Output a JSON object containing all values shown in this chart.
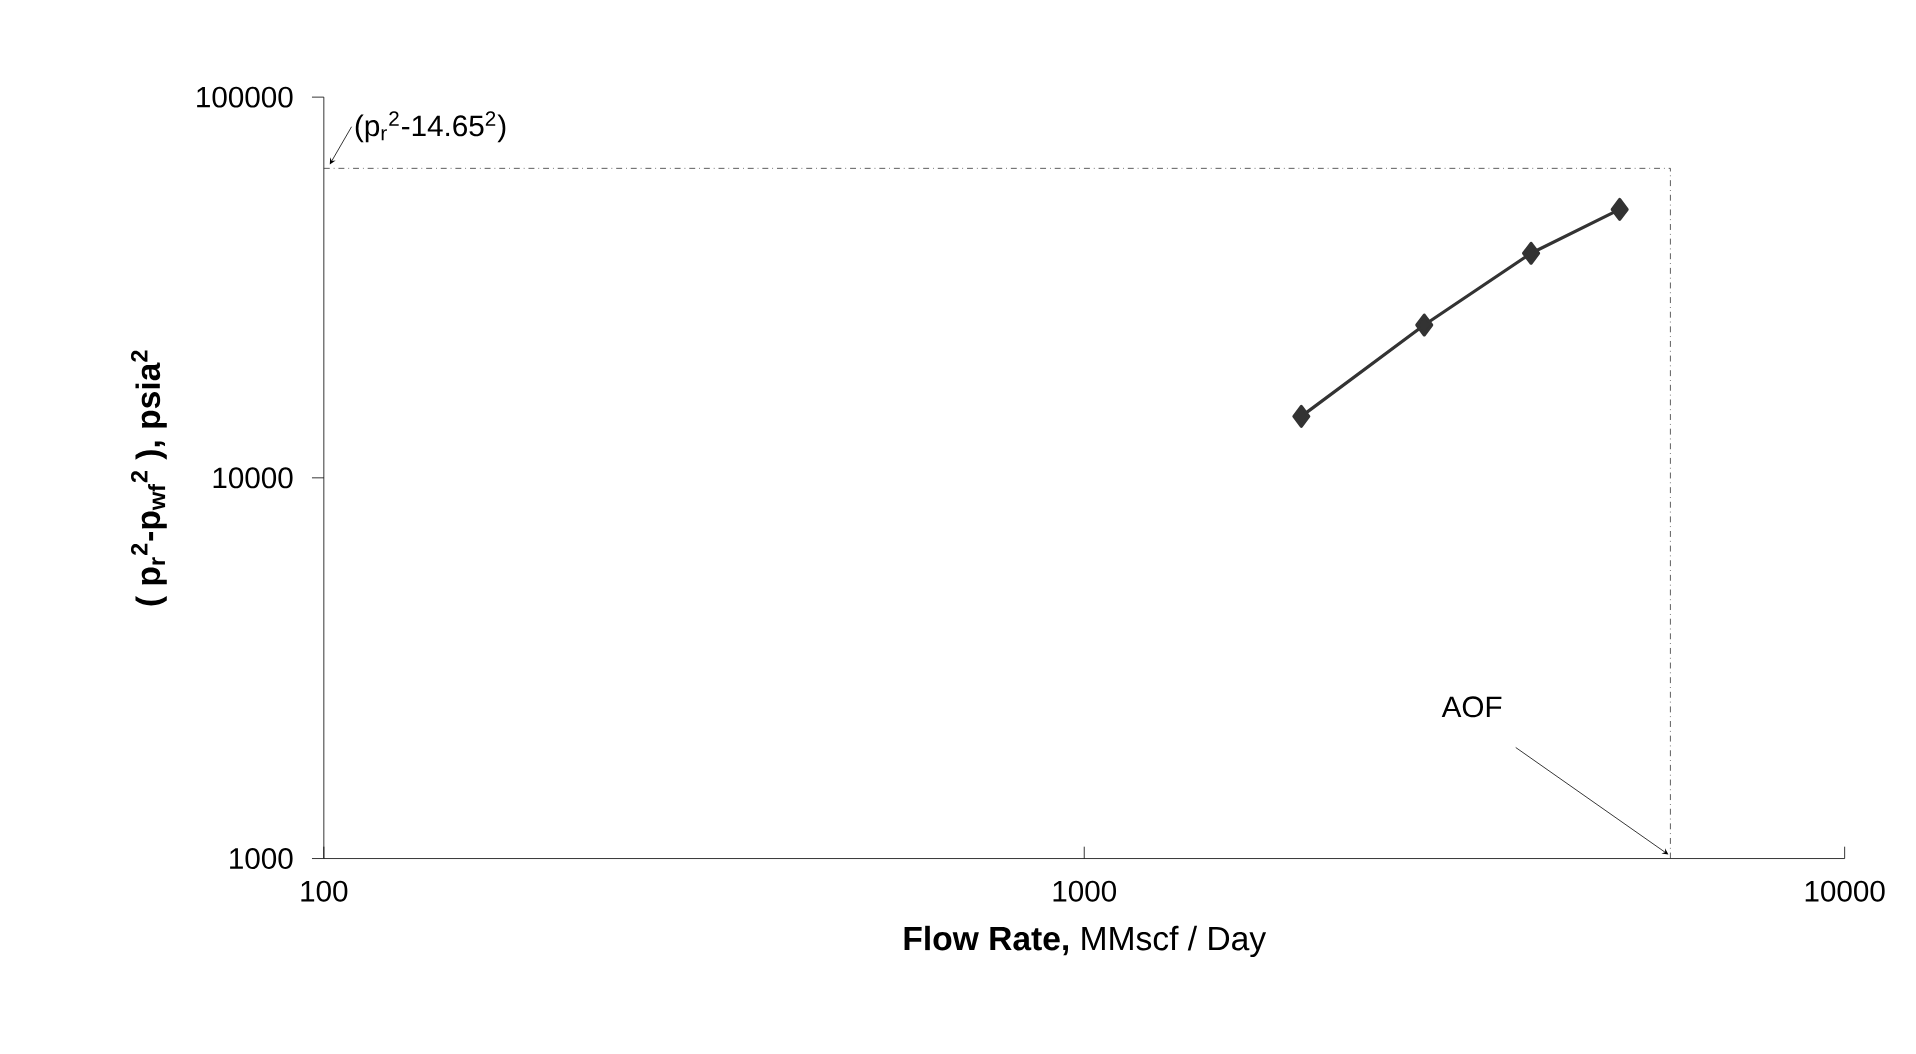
{
  "chart_data": {
    "type": "line",
    "xlabel": "**Flow Rate,** MMscf / Day",
    "ylabel": "( p$_{r}$$^{2}$-p$_{wf}$$^{2}$ ), psia$^{2}$",
    "log": "xy",
    "xlim": [
      100,
      10000
    ],
    "ylim": [
      1000,
      100000
    ],
    "xticks": [
      100,
      1000,
      10000
    ],
    "yticks": [
      1000,
      10000,
      100000
    ],
    "grid": false,
    "marker": "diamond",
    "line_style": "solid",
    "series": [
      {
        "color": "#333333",
        "x": [
          1930,
          2800,
          3870,
          5060
        ],
        "values": [
          14500,
          25200,
          38900,
          50700
        ]
      }
    ],
    "ref_lines": [
      {
        "axis": "y",
        "value": 65000,
        "label": "(p$_{r}$$^{2}$-14.65$^{2}$)",
        "line_style": "dashdotted",
        "color": "#333333"
      },
      {
        "axis": "x",
        "value": 5900,
        "label": "AOF",
        "line_style": "dashdotted",
        "color": "#333333"
      }
    ]
  }
}
